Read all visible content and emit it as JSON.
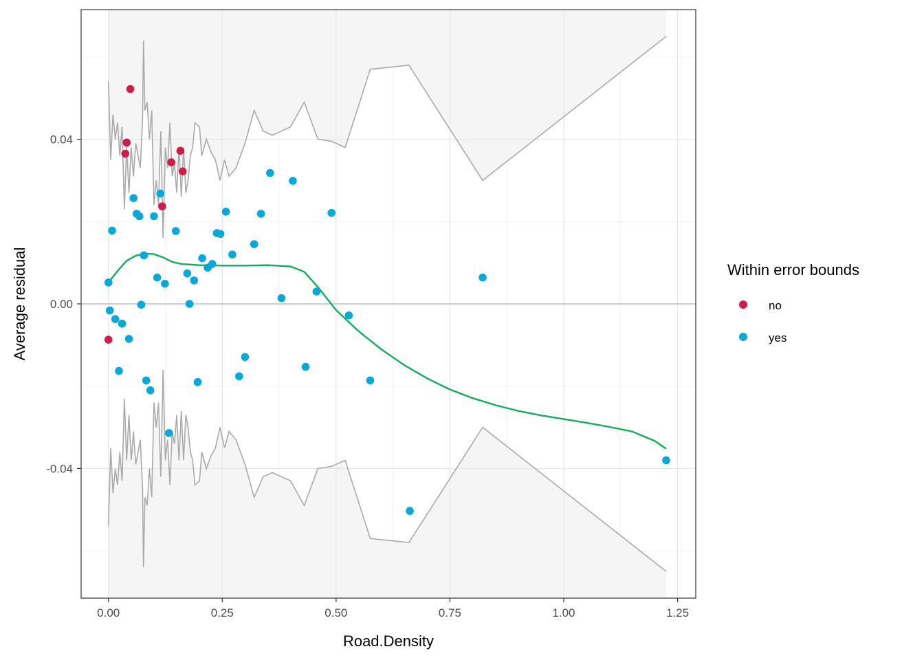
{
  "chart_data": {
    "type": "scatter",
    "xlabel": "Road.Density",
    "ylabel": "Average residual",
    "xlim": [
      -0.06,
      1.29
    ],
    "ylim": [
      -0.0715,
      0.0715
    ],
    "x_ticks": [
      0.0,
      0.25,
      0.5,
      0.75,
      1.0,
      1.25
    ],
    "x_tick_labels": [
      "0.00",
      "0.25",
      "0.50",
      "0.75",
      "1.00",
      "1.25"
    ],
    "y_ticks": [
      -0.04,
      0.0,
      0.04
    ],
    "y_tick_labels": [
      "-0.04",
      "0.00",
      "0.04"
    ],
    "grid": true,
    "reference_line_y": 0,
    "legend": {
      "title": "Within error bounds",
      "placement": "right",
      "entries": [
        {
          "label": "no",
          "color": "#d01c4b"
        },
        {
          "label": "yes",
          "color": "#0aa8d8"
        }
      ]
    },
    "error_band": {
      "color": "#aaaaaa",
      "fill": "#f5f5f5",
      "upper": [
        [
          0.0,
          0.054
        ],
        [
          0.005,
          0.035
        ],
        [
          0.01,
          0.046
        ],
        [
          0.015,
          0.04
        ],
        [
          0.02,
          0.044
        ],
        [
          0.025,
          0.036
        ],
        [
          0.03,
          0.043
        ],
        [
          0.035,
          0.023
        ],
        [
          0.04,
          0.038
        ],
        [
          0.045,
          0.027
        ],
        [
          0.05,
          0.038
        ],
        [
          0.055,
          0.031
        ],
        [
          0.06,
          0.039
        ],
        [
          0.065,
          0.036
        ],
        [
          0.07,
          0.033
        ],
        [
          0.075,
          0.045
        ],
        [
          0.077,
          0.064
        ],
        [
          0.08,
          0.047
        ],
        [
          0.085,
          0.049
        ],
        [
          0.09,
          0.04
        ],
        [
          0.095,
          0.047
        ],
        [
          0.1,
          0.024
        ],
        [
          0.105,
          0.03
        ],
        [
          0.11,
          0.024
        ],
        [
          0.115,
          0.042
        ],
        [
          0.12,
          0.016
        ],
        [
          0.125,
          0.038
        ],
        [
          0.13,
          0.033
        ],
        [
          0.135,
          0.044
        ],
        [
          0.14,
          0.031
        ],
        [
          0.145,
          0.034
        ],
        [
          0.15,
          0.027
        ],
        [
          0.155,
          0.038
        ],
        [
          0.16,
          0.026
        ],
        [
          0.165,
          0.038
        ],
        [
          0.17,
          0.027
        ],
        [
          0.175,
          0.03
        ],
        [
          0.18,
          0.036
        ],
        [
          0.185,
          0.038
        ],
        [
          0.19,
          0.044
        ],
        [
          0.2,
          0.043
        ],
        [
          0.205,
          0.036
        ],
        [
          0.215,
          0.04
        ],
        [
          0.225,
          0.037
        ],
        [
          0.235,
          0.035
        ],
        [
          0.245,
          0.03
        ],
        [
          0.255,
          0.035
        ],
        [
          0.265,
          0.031
        ],
        [
          0.28,
          0.033
        ],
        [
          0.3,
          0.039
        ],
        [
          0.32,
          0.047
        ],
        [
          0.34,
          0.042
        ],
        [
          0.36,
          0.041
        ],
        [
          0.38,
          0.042
        ],
        [
          0.4,
          0.043
        ],
        [
          0.43,
          0.049
        ],
        [
          0.46,
          0.04
        ],
        [
          0.49,
          0.0395
        ],
        [
          0.52,
          0.038
        ],
        [
          0.575,
          0.057
        ],
        [
          0.66,
          0.058
        ],
        [
          0.822,
          0.03
        ],
        [
          1.225,
          0.065
        ]
      ],
      "lower": [
        [
          0.0,
          -0.054
        ],
        [
          0.005,
          -0.035
        ],
        [
          0.01,
          -0.046
        ],
        [
          0.015,
          -0.04
        ],
        [
          0.02,
          -0.044
        ],
        [
          0.025,
          -0.036
        ],
        [
          0.03,
          -0.043
        ],
        [
          0.035,
          -0.023
        ],
        [
          0.04,
          -0.038
        ],
        [
          0.045,
          -0.027
        ],
        [
          0.05,
          -0.038
        ],
        [
          0.055,
          -0.031
        ],
        [
          0.06,
          -0.039
        ],
        [
          0.065,
          -0.036
        ],
        [
          0.07,
          -0.033
        ],
        [
          0.075,
          -0.045
        ],
        [
          0.077,
          -0.064
        ],
        [
          0.08,
          -0.047
        ],
        [
          0.085,
          -0.049
        ],
        [
          0.09,
          -0.04
        ],
        [
          0.095,
          -0.047
        ],
        [
          0.1,
          -0.024
        ],
        [
          0.105,
          -0.03
        ],
        [
          0.11,
          -0.024
        ],
        [
          0.115,
          -0.042
        ],
        [
          0.12,
          -0.016
        ],
        [
          0.125,
          -0.038
        ],
        [
          0.13,
          -0.033
        ],
        [
          0.135,
          -0.044
        ],
        [
          0.14,
          -0.031
        ],
        [
          0.145,
          -0.034
        ],
        [
          0.15,
          -0.027
        ],
        [
          0.155,
          -0.038
        ],
        [
          0.16,
          -0.026
        ],
        [
          0.165,
          -0.038
        ],
        [
          0.17,
          -0.027
        ],
        [
          0.175,
          -0.03
        ],
        [
          0.18,
          -0.036
        ],
        [
          0.185,
          -0.038
        ],
        [
          0.19,
          -0.044
        ],
        [
          0.2,
          -0.043
        ],
        [
          0.205,
          -0.036
        ],
        [
          0.215,
          -0.04
        ],
        [
          0.225,
          -0.037
        ],
        [
          0.235,
          -0.035
        ],
        [
          0.245,
          -0.03
        ],
        [
          0.255,
          -0.035
        ],
        [
          0.265,
          -0.031
        ],
        [
          0.28,
          -0.033
        ],
        [
          0.3,
          -0.039
        ],
        [
          0.32,
          -0.047
        ],
        [
          0.34,
          -0.042
        ],
        [
          0.36,
          -0.041
        ],
        [
          0.38,
          -0.042
        ],
        [
          0.4,
          -0.043
        ],
        [
          0.43,
          -0.049
        ],
        [
          0.46,
          -0.04
        ],
        [
          0.49,
          -0.0395
        ],
        [
          0.52,
          -0.038
        ],
        [
          0.575,
          -0.057
        ],
        [
          0.66,
          -0.058
        ],
        [
          0.822,
          -0.03
        ],
        [
          1.225,
          -0.065
        ]
      ]
    },
    "smooth_line": {
      "color": "#12ad5b",
      "points": [
        [
          0.0,
          0.0052
        ],
        [
          0.02,
          0.008
        ],
        [
          0.04,
          0.0105
        ],
        [
          0.06,
          0.0117
        ],
        [
          0.08,
          0.0122
        ],
        [
          0.1,
          0.0121
        ],
        [
          0.12,
          0.0113
        ],
        [
          0.14,
          0.0102
        ],
        [
          0.16,
          0.0097
        ],
        [
          0.2,
          0.0094
        ],
        [
          0.25,
          0.0093
        ],
        [
          0.3,
          0.0093
        ],
        [
          0.35,
          0.0094
        ],
        [
          0.4,
          0.0091
        ],
        [
          0.43,
          0.0078
        ],
        [
          0.46,
          0.0041
        ],
        [
          0.5,
          -0.0015
        ],
        [
          0.55,
          -0.0067
        ],
        [
          0.6,
          -0.0111
        ],
        [
          0.65,
          -0.0149
        ],
        [
          0.7,
          -0.0181
        ],
        [
          0.75,
          -0.0208
        ],
        [
          0.8,
          -0.0229
        ],
        [
          0.85,
          -0.0246
        ],
        [
          0.9,
          -0.026
        ],
        [
          0.95,
          -0.0271
        ],
        [
          1.0,
          -0.028
        ],
        [
          1.05,
          -0.0289
        ],
        [
          1.1,
          -0.0299
        ],
        [
          1.15,
          -0.031
        ],
        [
          1.2,
          -0.0333
        ],
        [
          1.225,
          -0.0352
        ]
      ]
    },
    "series": [
      {
        "name": "no",
        "color": "#d01c4b",
        "points": [
          [
            0.0,
            -0.0087
          ],
          [
            0.04,
            0.0392
          ],
          [
            0.037,
            0.0365
          ],
          [
            0.048,
            0.0522
          ],
          [
            0.138,
            0.0344
          ],
          [
            0.158,
            0.0372
          ],
          [
            0.163,
            0.0322
          ],
          [
            0.118,
            0.0237
          ]
        ]
      },
      {
        "name": "yes",
        "color": "#0aa8d8",
        "points": [
          [
            0.0,
            0.0052
          ],
          [
            0.003,
            -0.0016
          ],
          [
            0.008,
            0.0178
          ],
          [
            0.015,
            -0.0037
          ],
          [
            0.023,
            -0.0163
          ],
          [
            0.03,
            -0.0048
          ],
          [
            0.045,
            -0.0085
          ],
          [
            0.055,
            0.0257
          ],
          [
            0.062,
            0.0219
          ],
          [
            0.068,
            0.0213
          ],
          [
            0.072,
            -0.0002
          ],
          [
            0.078,
            0.0118
          ],
          [
            0.083,
            -0.0186
          ],
          [
            0.092,
            -0.021
          ],
          [
            0.1,
            0.0213
          ],
          [
            0.107,
            0.0064
          ],
          [
            0.114,
            0.0268
          ],
          [
            0.124,
            0.0049
          ],
          [
            0.133,
            -0.0314
          ],
          [
            0.148,
            0.0177
          ],
          [
            0.173,
            0.0074
          ],
          [
            0.178,
            0.0
          ],
          [
            0.188,
            0.0057
          ],
          [
            0.196,
            -0.019
          ],
          [
            0.206,
            0.0111
          ],
          [
            0.218,
            0.0088
          ],
          [
            0.228,
            0.0097
          ],
          [
            0.238,
            0.0172
          ],
          [
            0.246,
            0.017
          ],
          [
            0.258,
            0.0224
          ],
          [
            0.272,
            0.012
          ],
          [
            0.287,
            -0.0176
          ],
          [
            0.3,
            -0.0129
          ],
          [
            0.32,
            0.0145
          ],
          [
            0.335,
            0.0219
          ],
          [
            0.355,
            0.0318
          ],
          [
            0.38,
            0.0014
          ],
          [
            0.405,
            0.0299
          ],
          [
            0.433,
            -0.0153
          ],
          [
            0.457,
            0.003
          ],
          [
            0.49,
            0.0221
          ],
          [
            0.528,
            -0.0028
          ],
          [
            0.575,
            -0.0186
          ],
          [
            0.662,
            -0.0503
          ],
          [
            0.822,
            0.0064
          ],
          [
            1.225,
            -0.038
          ]
        ]
      }
    ]
  }
}
